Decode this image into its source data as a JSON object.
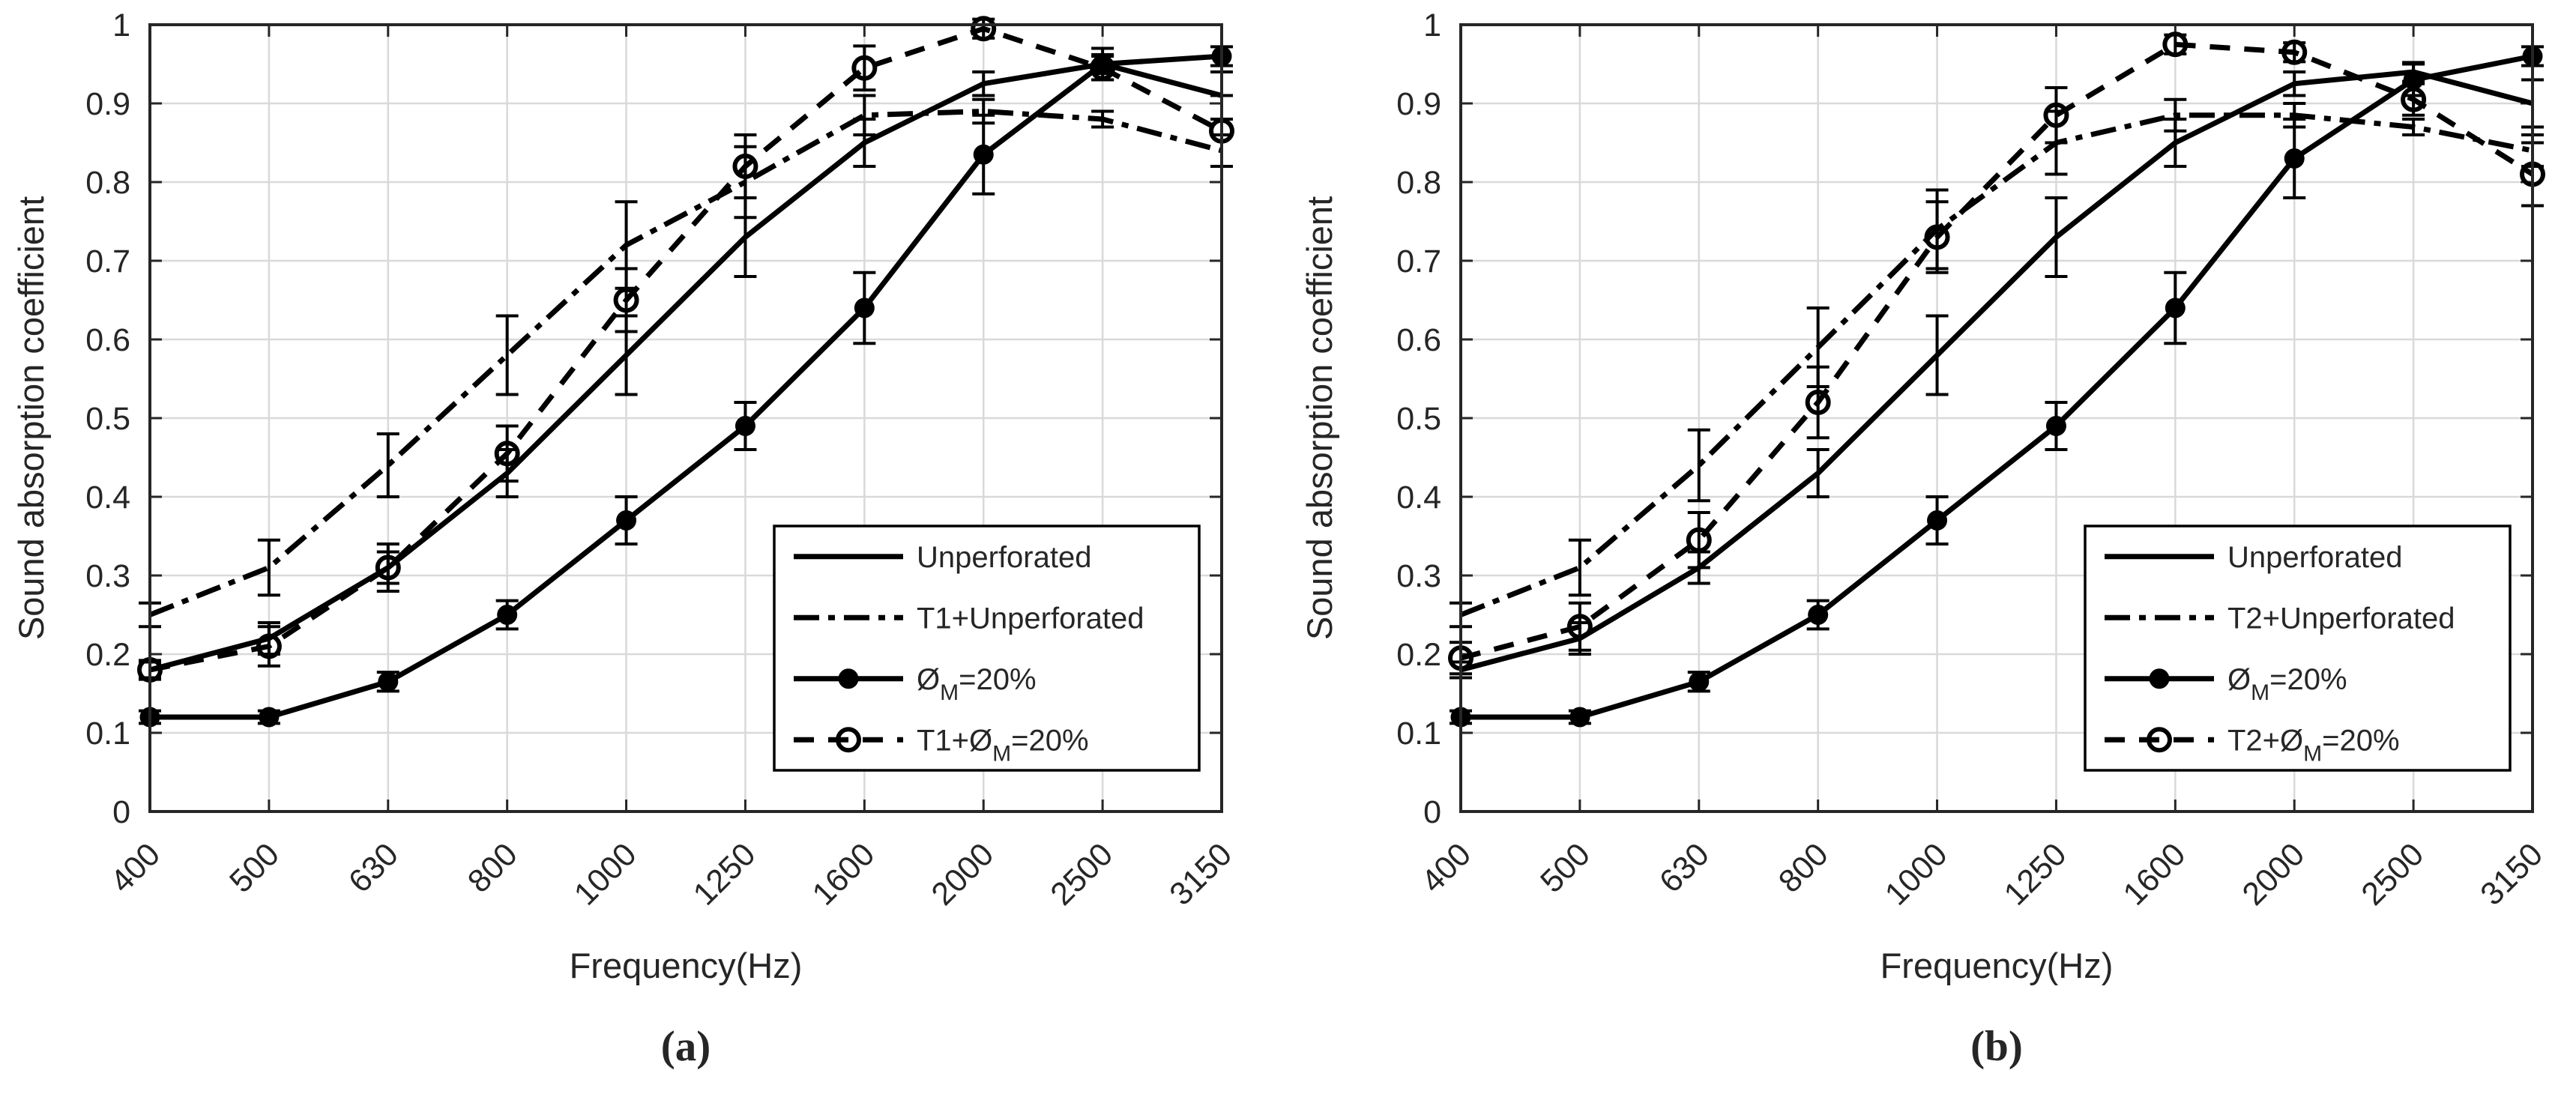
{
  "figure": {
    "background": "#ffffff",
    "description_visible_text_only": true
  },
  "colors": {
    "line": "#000000",
    "grid": "#d9d9d9",
    "axis": "#262626",
    "text": "#262626",
    "legend_background": "#ffffff",
    "legend_border": "#000000"
  },
  "chart_data": [
    {
      "id": "a",
      "type": "line",
      "sublabel": "(a)",
      "xlabel": "Frequency(Hz)",
      "ylabel": "Sound absorption coefficient",
      "ylim": [
        0,
        1
      ],
      "grid": true,
      "legend_position": "lower right",
      "ytick_labels": [
        "0",
        "0.1",
        "0.2",
        "0.3",
        "0.4",
        "0.5",
        "0.6",
        "0.7",
        "0.8",
        "0.9",
        "1"
      ],
      "categories": [
        "400",
        "500",
        "630",
        "800",
        "1000",
        "1250",
        "1600",
        "2000",
        "2500",
        "3150"
      ],
      "series": [
        {
          "name": "Unperforated",
          "label_segments": [
            {
              "t": "Unperforated"
            }
          ],
          "line": "solid",
          "marker": "none",
          "values": [
            0.18,
            0.22,
            0.31,
            0.43,
            0.58,
            0.73,
            0.85,
            0.925,
            0.95,
            0.91
          ],
          "errors": [
            0.01,
            0.02,
            0.02,
            0.03,
            0.05,
            0.05,
            0.03,
            0.015,
            0.012,
            0.03
          ]
        },
        {
          "name": "T1+Unperforated",
          "label_segments": [
            {
              "t": "T1+Unperforated"
            }
          ],
          "line": "dashdot",
          "marker": "none",
          "values": [
            0.25,
            0.31,
            0.44,
            0.58,
            0.72,
            0.8,
            0.885,
            0.89,
            0.88,
            0.84
          ],
          "errors": [
            0.015,
            0.035,
            0.04,
            0.05,
            0.055,
            0.045,
            0.025,
            0.015,
            0.01,
            0.02
          ]
        },
        {
          "name": "ØM=20%",
          "label_segments": [
            {
              "t": "Ø"
            },
            {
              "t": "M",
              "sub": true
            },
            {
              "t": "=20%"
            }
          ],
          "line": "solid",
          "marker": "filled-circle",
          "values": [
            0.12,
            0.12,
            0.165,
            0.25,
            0.37,
            0.49,
            0.64,
            0.835,
            0.95,
            0.96
          ],
          "errors": [
            0.008,
            0.008,
            0.012,
            0.018,
            0.03,
            0.03,
            0.045,
            0.05,
            0.02,
            0.012
          ]
        },
        {
          "name": "T1+ØM=20%",
          "label_segments": [
            {
              "t": "T1+Ø"
            },
            {
              "t": "M",
              "sub": true
            },
            {
              "t": "=20%"
            }
          ],
          "line": "dashed",
          "marker": "open-circle",
          "values": [
            0.18,
            0.21,
            0.31,
            0.455,
            0.65,
            0.82,
            0.945,
            0.995,
            0.945,
            0.865
          ],
          "errors": [
            0.012,
            0.025,
            0.03,
            0.035,
            0.04,
            0.04,
            0.028,
            0.012,
            0.015,
            0.045
          ]
        }
      ]
    },
    {
      "id": "b",
      "type": "line",
      "sublabel": "(b)",
      "xlabel": "Frequency(Hz)",
      "ylabel": "Sound absorption coefficient",
      "ylim": [
        0,
        1
      ],
      "grid": true,
      "legend_position": "lower right",
      "ytick_labels": [
        "0",
        "0.1",
        "0.2",
        "0.3",
        "0.4",
        "0.5",
        "0.6",
        "0.7",
        "0.8",
        "0.9",
        "1"
      ],
      "categories": [
        "400",
        "500",
        "630",
        "800",
        "1000",
        "1250",
        "1600",
        "2000",
        "2500",
        "3150"
      ],
      "series": [
        {
          "name": "Unperforated",
          "label_segments": [
            {
              "t": "Unperforated"
            }
          ],
          "line": "solid",
          "marker": "none",
          "values": [
            0.18,
            0.22,
            0.31,
            0.43,
            0.58,
            0.73,
            0.85,
            0.925,
            0.94,
            0.9
          ],
          "errors": [
            0.01,
            0.02,
            0.02,
            0.03,
            0.05,
            0.05,
            0.03,
            0.015,
            0.012,
            0.03
          ]
        },
        {
          "name": "T2+Unperforated",
          "label_segments": [
            {
              "t": "T2+Unperforated"
            }
          ],
          "line": "dashdot",
          "marker": "none",
          "values": [
            0.25,
            0.31,
            0.44,
            0.59,
            0.74,
            0.85,
            0.885,
            0.885,
            0.87,
            0.84
          ],
          "errors": [
            0.015,
            0.035,
            0.045,
            0.05,
            0.05,
            0.04,
            0.02,
            0.015,
            0.01,
            0.02
          ]
        },
        {
          "name": "ØM=20%",
          "label_segments": [
            {
              "t": "Ø"
            },
            {
              "t": "M",
              "sub": true
            },
            {
              "t": "=20%"
            }
          ],
          "line": "solid",
          "marker": "filled-circle",
          "values": [
            0.12,
            0.12,
            0.165,
            0.25,
            0.37,
            0.49,
            0.64,
            0.83,
            0.93,
            0.96
          ],
          "errors": [
            0.008,
            0.008,
            0.012,
            0.018,
            0.03,
            0.03,
            0.045,
            0.05,
            0.02,
            0.012
          ]
        },
        {
          "name": "T2+ØM=20%",
          "label_segments": [
            {
              "t": "T2+Ø"
            },
            {
              "t": "M",
              "sub": true
            },
            {
              "t": "=20%"
            }
          ],
          "line": "dashed",
          "marker": "open-circle",
          "values": [
            0.195,
            0.235,
            0.345,
            0.52,
            0.73,
            0.885,
            0.975,
            0.965,
            0.905,
            0.81
          ],
          "errors": [
            0.02,
            0.03,
            0.035,
            0.045,
            0.045,
            0.035,
            0.012,
            0.012,
            0.02,
            0.04
          ]
        }
      ]
    }
  ]
}
